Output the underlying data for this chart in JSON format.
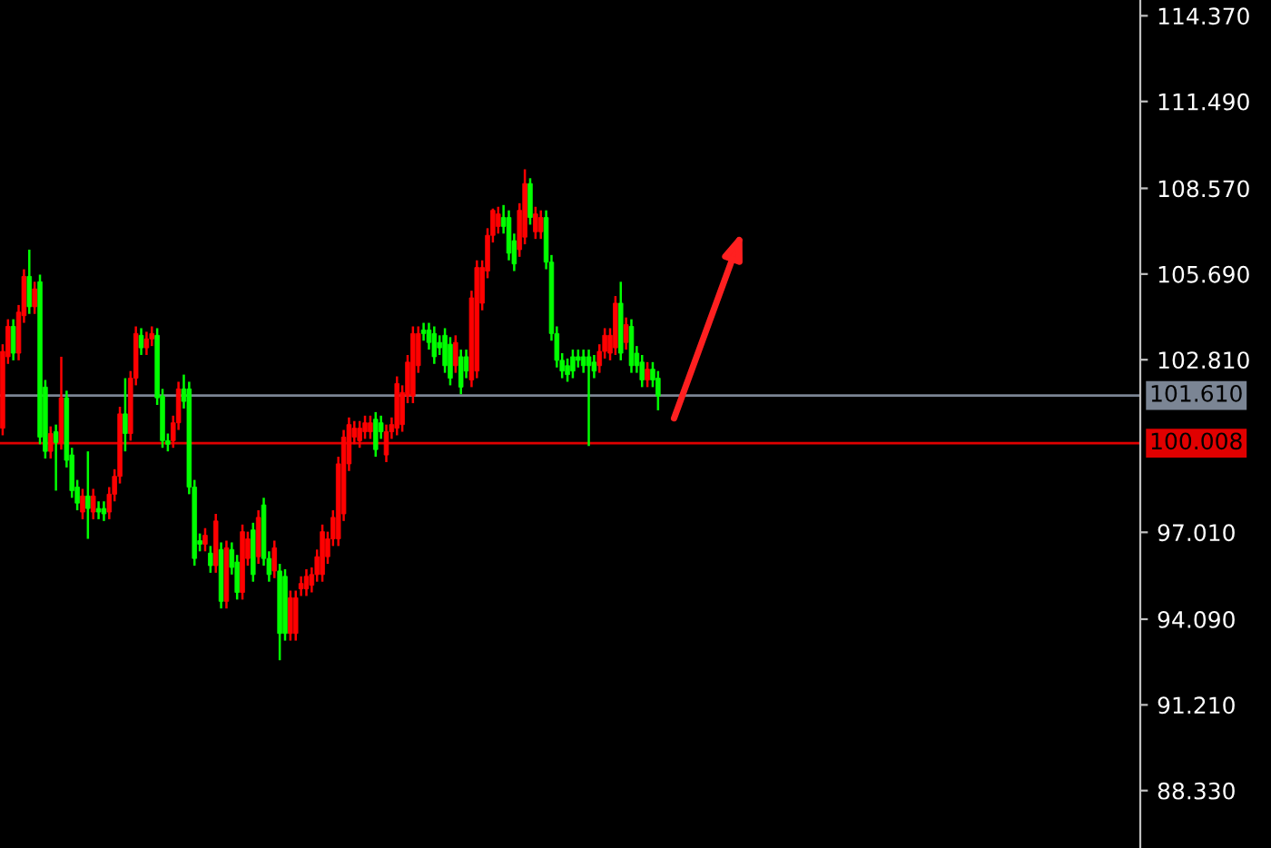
{
  "chart_data": {
    "type": "candlestick",
    "categories": [
      null,
      null,
      null,
      null,
      null,
      null,
      null,
      null,
      null,
      null,
      null,
      null,
      null,
      null,
      null,
      null,
      null,
      null,
      null,
      null,
      null,
      null,
      null,
      null,
      null,
      null,
      null,
      null,
      null,
      null,
      null,
      null,
      null,
      null,
      null,
      null,
      null,
      null,
      null,
      null,
      null,
      null,
      null,
      null,
      null,
      null,
      null,
      null,
      null,
      null,
      null,
      null,
      null,
      null,
      null,
      null,
      null,
      null,
      null,
      null,
      null,
      null,
      null,
      null,
      null,
      null,
      null,
      null,
      null,
      null,
      null,
      null,
      null,
      null,
      null,
      null,
      null,
      null,
      null,
      null,
      null,
      null,
      null,
      null,
      null,
      null,
      null,
      null,
      null,
      null,
      null,
      null,
      null,
      null,
      null,
      null,
      null,
      null,
      null,
      null,
      null,
      null,
      null,
      null,
      null,
      null,
      null,
      null,
      null,
      null,
      null,
      null,
      null,
      null,
      null,
      null,
      null,
      null,
      null,
      null,
      null,
      null,
      null,
      null,
      null,
      null,
      null,
      null,
      null,
      null,
      null,
      null,
      null,
      null,
      null,
      null,
      null,
      null,
      null,
      null,
      null,
      null,
      null,
      null,
      null,
      null,
      null,
      null,
      null,
      null,
      null,
      null,
      null,
      null,
      null,
      null,
      null,
      null,
      null,
      null,
      null,
      null,
      null,
      null,
      null,
      null,
      null,
      null,
      null,
      null,
      null,
      null,
      null,
      null,
      null,
      null,
      null,
      null,
      null,
      null,
      null,
      null,
      null,
      null,
      null,
      null,
      null,
      null,
      null,
      null,
      null,
      null,
      null,
      null,
      null,
      null,
      null,
      null,
      null,
      null,
      null,
      null,
      null,
      null,
      null,
      null,
      null,
      null,
      null,
      null,
      null,
      null,
      null,
      null
    ],
    "ohlc": [
      [
        100.51,
        103.33,
        100.27,
        103.09
      ],
      [
        102.91,
        104.17,
        102.67,
        103.93
      ],
      [
        103.93,
        104.17,
        102.79,
        103.03
      ],
      [
        103.03,
        104.65,
        102.79,
        104.41
      ],
      [
        104.29,
        105.85,
        104.05,
        105.61
      ],
      [
        105.61,
        106.51,
        104.35,
        104.59
      ],
      [
        104.59,
        105.43,
        104.35,
        105.19
      ],
      [
        105.43,
        105.67,
        99.97,
        100.21
      ],
      [
        101.89,
        102.13,
        99.49,
        99.73
      ],
      [
        99.73,
        100.57,
        99.49,
        100.33
      ],
      [
        100.39,
        100.63,
        98.41,
        100.03
      ],
      [
        100.03,
        102.91,
        99.79,
        101.53
      ],
      [
        101.53,
        101.77,
        99.19,
        99.43
      ],
      [
        99.61,
        99.85,
        98.17,
        98.41
      ],
      [
        98.53,
        98.77,
        97.75,
        97.99
      ],
      [
        97.69,
        98.47,
        97.45,
        98.23
      ],
      [
        98.23,
        99.73,
        96.79,
        97.81
      ],
      [
        97.69,
        98.47,
        97.45,
        98.23
      ],
      [
        97.81,
        98.05,
        97.45,
        97.69
      ],
      [
        97.81,
        98.05,
        97.39,
        97.63
      ],
      [
        97.69,
        98.53,
        97.45,
        98.29
      ],
      [
        98.29,
        99.13,
        98.05,
        98.89
      ],
      [
        98.89,
        101.23,
        98.65,
        100.99
      ],
      [
        100.99,
        102.19,
        99.73,
        100.33
      ],
      [
        100.33,
        102.43,
        100.09,
        102.19
      ],
      [
        102.19,
        103.93,
        101.95,
        103.69
      ],
      [
        103.63,
        103.87,
        102.97,
        103.21
      ],
      [
        103.21,
        103.75,
        102.97,
        103.51
      ],
      [
        103.51,
        103.93,
        103.27,
        103.69
      ],
      [
        103.63,
        103.87,
        101.29,
        101.53
      ],
      [
        101.59,
        101.83,
        99.85,
        100.09
      ],
      [
        100.09,
        100.33,
        99.73,
        99.97
      ],
      [
        100.09,
        100.93,
        99.85,
        100.69
      ],
      [
        100.69,
        102.07,
        100.45,
        101.83
      ],
      [
        101.83,
        102.31,
        101.17,
        101.41
      ],
      [
        101.83,
        102.07,
        98.29,
        98.53
      ],
      [
        98.53,
        98.77,
        95.89,
        96.13
      ],
      [
        96.73,
        96.97,
        96.37,
        96.61
      ],
      [
        96.61,
        97.15,
        96.37,
        96.91
      ],
      [
        96.31,
        96.55,
        95.65,
        95.89
      ],
      [
        95.89,
        97.63,
        95.65,
        97.39
      ],
      [
        96.43,
        96.67,
        94.45,
        94.69
      ],
      [
        94.69,
        96.73,
        94.45,
        96.49
      ],
      [
        96.43,
        96.67,
        95.59,
        95.83
      ],
      [
        96.01,
        96.25,
        94.75,
        94.99
      ],
      [
        94.99,
        97.27,
        94.75,
        97.03
      ],
      [
        96.13,
        97.03,
        95.89,
        96.79
      ],
      [
        97.09,
        97.33,
        95.35,
        95.59
      ],
      [
        96.19,
        97.75,
        95.95,
        97.51
      ],
      [
        97.93,
        98.17,
        95.89,
        96.13
      ],
      [
        96.13,
        96.37,
        95.35,
        95.59
      ],
      [
        95.71,
        96.73,
        95.47,
        96.49
      ],
      [
        95.71,
        95.95,
        92.71,
        93.61
      ],
      [
        95.53,
        95.77,
        93.37,
        93.61
      ],
      [
        93.61,
        95.05,
        93.37,
        94.81
      ],
      [
        93.61,
        95.05,
        93.37,
        94.81
      ],
      [
        95.11,
        95.53,
        94.87,
        95.29
      ],
      [
        95.11,
        95.77,
        94.87,
        95.53
      ],
      [
        95.23,
        95.83,
        94.99,
        95.59
      ],
      [
        95.59,
        96.43,
        95.35,
        96.19
      ],
      [
        95.59,
        97.27,
        95.35,
        97.03
      ],
      [
        96.19,
        97.03,
        95.95,
        96.79
      ],
      [
        96.79,
        97.75,
        96.55,
        97.51
      ],
      [
        96.79,
        99.55,
        96.55,
        99.31
      ],
      [
        97.63,
        100.45,
        97.39,
        100.21
      ],
      [
        99.31,
        100.87,
        99.07,
        100.63
      ],
      [
        100.21,
        100.75,
        99.97,
        100.51
      ],
      [
        100.09,
        100.75,
        99.85,
        100.51
      ],
      [
        100.39,
        100.93,
        100.15,
        100.69
      ],
      [
        100.39,
        100.93,
        100.15,
        100.69
      ],
      [
        100.81,
        101.05,
        99.55,
        99.79
      ],
      [
        100.69,
        100.93,
        100.15,
        100.39
      ],
      [
        99.61,
        100.63,
        99.37,
        100.39
      ],
      [
        100.39,
        100.87,
        100.15,
        100.63
      ],
      [
        100.51,
        102.25,
        100.27,
        102.01
      ],
      [
        100.63,
        101.95,
        100.39,
        101.71
      ],
      [
        101.59,
        102.97,
        101.35,
        102.73
      ],
      [
        101.59,
        103.93,
        101.35,
        103.69
      ],
      [
        102.61,
        103.93,
        102.37,
        103.69
      ],
      [
        103.81,
        104.05,
        103.45,
        103.69
      ],
      [
        103.81,
        104.05,
        103.15,
        103.39
      ],
      [
        103.69,
        103.93,
        102.67,
        102.91
      ],
      [
        103.39,
        103.63,
        102.97,
        103.21
      ],
      [
        103.63,
        103.87,
        102.37,
        102.61
      ],
      [
        103.33,
        103.57,
        101.95,
        102.19
      ],
      [
        102.61,
        103.63,
        102.37,
        103.39
      ],
      [
        102.91,
        103.15,
        101.65,
        101.89
      ],
      [
        102.91,
        103.15,
        102.19,
        102.43
      ],
      [
        102.13,
        105.13,
        101.89,
        104.89
      ],
      [
        102.43,
        106.15,
        102.19,
        105.91
      ],
      [
        104.71,
        106.15,
        104.47,
        105.91
      ],
      [
        105.79,
        107.23,
        105.55,
        106.99
      ],
      [
        106.99,
        107.89,
        106.75,
        107.83
      ],
      [
        107.29,
        107.95,
        107.05,
        107.71
      ],
      [
        107.59,
        108.01,
        107.05,
        107.29
      ],
      [
        107.59,
        107.83,
        106.15,
        106.39
      ],
      [
        106.81,
        107.05,
        105.79,
        106.03
      ],
      [
        106.51,
        108.07,
        106.27,
        107.83
      ],
      [
        106.93,
        109.21,
        106.69,
        108.73
      ],
      [
        108.73,
        108.91,
        107.35,
        107.59
      ],
      [
        107.11,
        107.95,
        106.87,
        107.71
      ],
      [
        107.11,
        107.83,
        106.87,
        107.59
      ],
      [
        107.59,
        107.83,
        105.85,
        106.09
      ],
      [
        106.09,
        106.33,
        103.45,
        103.69
      ],
      [
        103.69,
        103.93,
        102.55,
        102.79
      ],
      [
        102.79,
        103.03,
        102.19,
        102.43
      ],
      [
        102.61,
        102.85,
        102.07,
        102.31
      ],
      [
        102.91,
        103.15,
        102.19,
        102.43
      ],
      [
        102.91,
        103.15,
        102.55,
        102.79
      ],
      [
        102.91,
        103.15,
        102.37,
        102.61
      ],
      [
        102.91,
        103.15,
        99.91,
        102.61
      ],
      [
        102.73,
        102.97,
        102.19,
        102.43
      ],
      [
        102.61,
        103.33,
        102.37,
        103.09
      ],
      [
        103.09,
        103.87,
        102.85,
        103.63
      ],
      [
        103.03,
        103.87,
        102.79,
        103.63
      ],
      [
        103.21,
        104.95,
        102.97,
        104.71
      ],
      [
        104.71,
        105.43,
        102.79,
        103.03
      ],
      [
        103.39,
        104.23,
        103.15,
        103.99
      ],
      [
        103.93,
        104.17,
        102.37,
        102.61
      ],
      [
        103.03,
        103.27,
        102.37,
        102.61
      ],
      [
        102.73,
        102.97,
        101.89,
        102.13
      ],
      [
        102.13,
        102.73,
        101.89,
        102.49
      ],
      [
        102.49,
        102.73,
        101.89,
        102.13
      ],
      [
        102.19,
        102.43,
        101.11,
        101.59
      ],
      null,
      null,
      null,
      null,
      null,
      null,
      null,
      null,
      null,
      null,
      null,
      null,
      null,
      null,
      null,
      null,
      null,
      null,
      null,
      null,
      null,
      null,
      null,
      null,
      null,
      null,
      null,
      null,
      null,
      null,
      null,
      null,
      null,
      null,
      null,
      null,
      null,
      null,
      null,
      null,
      null,
      null,
      null,
      null,
      null,
      null,
      null,
      null,
      null,
      null,
      null,
      null,
      null,
      null,
      null,
      null,
      null,
      null,
      null,
      null,
      null,
      null,
      null,
      null,
      null,
      null,
      null,
      null,
      null,
      null,
      null,
      null,
      null,
      null,
      null,
      null,
      null,
      null,
      null,
      null,
      null,
      null,
      null,
      null,
      null,
      null,
      null,
      null,
      null,
      null
    ],
    "colors": [
      "#ff0000",
      "#ff0000",
      "#00ff00",
      "#ff0000",
      "#ff0000",
      "#00ff00",
      "#ff0000",
      "#00ff00",
      "#00ff00",
      "#ff0000",
      "#00ff00",
      "#ff0000",
      "#00ff00",
      "#00ff00",
      "#00ff00",
      "#ff0000",
      "#00ff00",
      "#ff0000",
      "#00ff00",
      "#00ff00",
      "#ff0000",
      "#ff0000",
      "#ff0000",
      "#00ff00",
      "#ff0000",
      "#ff0000",
      "#00ff00",
      "#ff0000",
      "#ff0000",
      "#00ff00",
      "#00ff00",
      "#00ff00",
      "#ff0000",
      "#ff0000",
      "#00ff00",
      "#00ff00",
      "#00ff00",
      "#00ff00",
      "#ff0000",
      "#00ff00",
      "#ff0000",
      "#00ff00",
      "#ff0000",
      "#00ff00",
      "#00ff00",
      "#ff0000",
      "#ff0000",
      "#00ff00",
      "#ff0000",
      "#00ff00",
      "#00ff00",
      "#ff0000",
      "#00ff00",
      "#00ff00",
      "#ff0000",
      "#ff0000",
      "#ff0000",
      "#ff0000",
      "#ff0000",
      "#ff0000",
      "#ff0000",
      "#ff0000",
      "#ff0000",
      "#ff0000",
      "#ff0000",
      "#ff0000",
      "#ff0000",
      "#ff0000",
      "#ff0000",
      "#ff0000",
      "#00ff00",
      "#00ff00",
      "#ff0000",
      "#ff0000",
      "#ff0000",
      "#ff0000",
      "#ff0000",
      "#ff0000",
      "#ff0000",
      "#00ff00",
      "#00ff00",
      "#00ff00",
      "#00ff00",
      "#00ff00",
      "#00ff00",
      "#ff0000",
      "#00ff00",
      "#00ff00",
      "#ff0000",
      "#ff0000",
      "#ff0000",
      "#ff0000",
      "#ff0000",
      "#ff0000",
      "#00ff00",
      "#00ff00",
      "#00ff00",
      "#ff0000",
      "#ff0000",
      "#00ff00",
      "#ff0000",
      "#ff0000",
      "#00ff00",
      "#00ff00",
      "#00ff00",
      "#00ff00",
      "#00ff00",
      "#00ff00",
      "#00ff00",
      "#00ff00",
      "#00ff00",
      "#00ff00",
      "#ff0000",
      "#ff0000",
      "#ff0000",
      "#ff0000",
      "#00ff00",
      "#ff0000",
      "#00ff00",
      "#00ff00",
      "#00ff00",
      "#ff0000",
      "#00ff00",
      "#00ff00",
      null,
      null,
      null,
      null,
      null,
      null,
      null,
      null,
      null,
      null,
      null,
      null,
      null,
      null,
      null,
      null,
      null,
      null,
      null,
      null,
      null,
      null,
      null,
      null,
      null,
      null,
      null,
      null,
      null,
      null,
      null,
      null,
      null,
      null,
      null,
      null,
      null,
      null,
      null,
      null,
      null,
      null,
      null,
      null,
      null,
      null,
      null,
      null,
      null,
      null,
      null,
      null,
      null,
      null,
      null,
      null,
      null,
      null,
      null,
      null,
      null,
      null,
      null,
      null,
      null,
      null,
      null,
      null,
      null,
      null,
      null,
      null,
      null,
      null,
      null,
      null,
      null,
      null,
      null,
      null,
      null,
      null,
      null,
      null,
      null,
      null,
      null,
      null,
      null,
      null
    ],
    "ylim": [
      86.4,
      114.9
    ],
    "yticks": [
      {
        "value": 114.37,
        "label": "114.370"
      },
      {
        "value": 111.49,
        "label": "111.490"
      },
      {
        "value": 108.57,
        "label": "108.570"
      },
      {
        "value": 105.69,
        "label": "105.690"
      },
      {
        "value": 102.81,
        "label": "102.810"
      },
      {
        "value": 97.01,
        "label": "97.010"
      },
      {
        "value": 94.09,
        "label": "94.090"
      },
      {
        "value": 91.21,
        "label": "91.210"
      },
      {
        "value": 88.33,
        "label": "88.330"
      }
    ],
    "ref_lines": [
      {
        "axis": "y",
        "value": 101.61,
        "label": "101.610",
        "color": "#7b8594"
      },
      {
        "axis": "y",
        "value": 100.008,
        "label": "100.008",
        "color": "#e00000"
      }
    ],
    "tick_labels": "y"
  }
}
